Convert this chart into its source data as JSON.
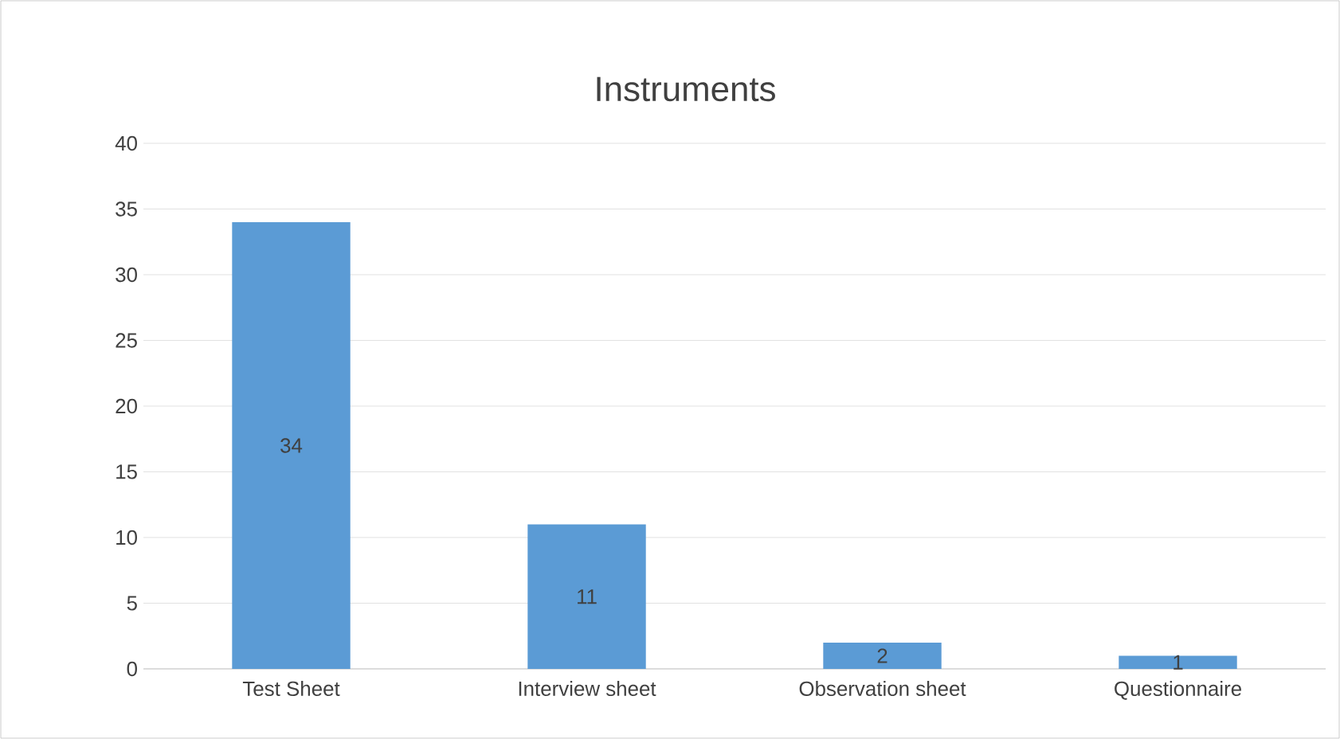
{
  "chart_data": {
    "type": "bar",
    "title": "Instruments",
    "categories": [
      "Test Sheet",
      "Interview sheet",
      "Observation sheet",
      "Questionnaire"
    ],
    "values": [
      34,
      11,
      2,
      1
    ],
    "color": "#5b9bd5",
    "ylim": [
      0,
      40
    ],
    "yticks": [
      0,
      5,
      10,
      15,
      20,
      25,
      30,
      35,
      40
    ],
    "grid": "y",
    "data_labels": true
  }
}
